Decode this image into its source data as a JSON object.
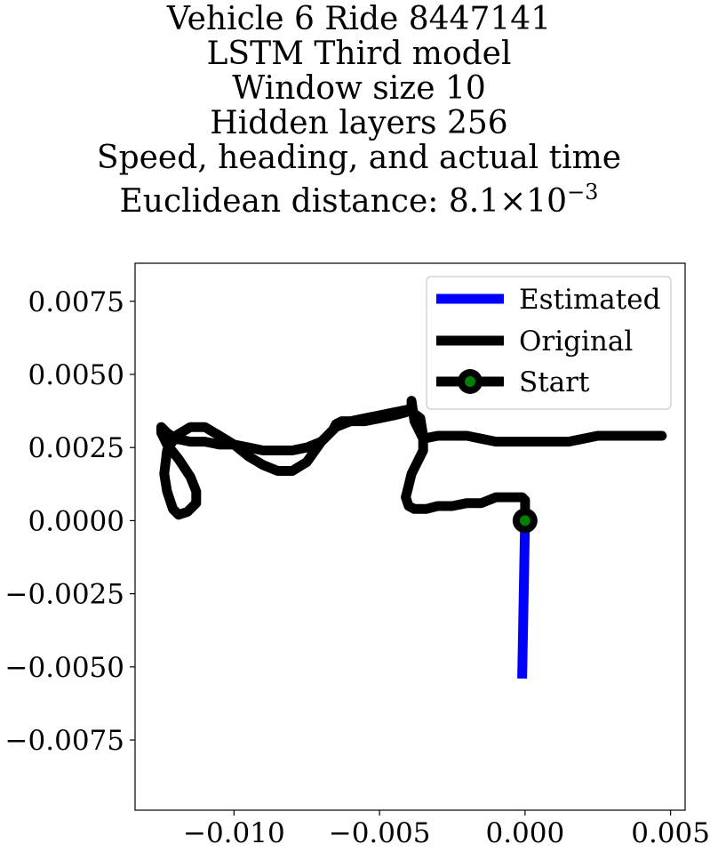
{
  "title_lines": [
    "Vehicle 6 Ride 8447141",
    "LSTM Third model",
    "Window size 10",
    "Hidden layers 256",
    "Speed, heading, and actual time"
  ],
  "distance_line": {
    "prefix": "Euclidean distance: 8.1",
    "times": "×",
    "base": "10",
    "exponent": "−3"
  },
  "chart_data": {
    "type": "line",
    "xlim": [
      -0.0134,
      0.0055
    ],
    "ylim": [
      -0.0099,
      0.0088
    ],
    "x_ticks": [
      -0.01,
      -0.005,
      0.0,
      0.005
    ],
    "x_tick_labels": [
      "−0.010",
      "−0.005",
      "0.000",
      "0.005"
    ],
    "y_ticks": [
      0.0075,
      0.005,
      0.0025,
      0.0,
      -0.0025,
      -0.005,
      -0.0075
    ],
    "y_tick_labels": [
      "0.0075",
      "0.0050",
      "0.0025",
      "0.0000",
      "−0.0025",
      "−0.0050",
      "−0.0075"
    ],
    "grid": false,
    "legend_position": "top-right",
    "series": [
      {
        "name": "Estimated",
        "color": "#0000ff",
        "x": [
          0.0,
          -0.0001
        ],
        "y": [
          0.0,
          -0.0054
        ]
      },
      {
        "name": "Original",
        "color": "#000000",
        "x": [
          0.0,
          0.0,
          -0.0001,
          -0.0005,
          -0.001,
          -0.0015,
          -0.002,
          -0.0025,
          -0.003,
          -0.0034,
          -0.0038,
          -0.004,
          -0.0041,
          -0.004,
          -0.0039,
          -0.0037,
          -0.0035,
          -0.0035,
          -0.0036,
          -0.004,
          -0.0045,
          -0.005,
          -0.0055,
          -0.006,
          -0.0065,
          -0.007,
          -0.0075,
          -0.008,
          -0.0085,
          -0.009,
          -0.0095,
          -0.01,
          -0.0105,
          -0.011,
          -0.0115,
          -0.012,
          -0.0123,
          -0.0124,
          -0.0123,
          -0.0121,
          -0.0119,
          -0.0116,
          -0.0113,
          -0.0113,
          -0.0115,
          -0.0119,
          -0.0123,
          -0.0125,
          -0.0125,
          -0.0123,
          -0.012,
          -0.0115,
          -0.011,
          -0.0105,
          -0.01,
          -0.0095,
          -0.009,
          -0.0085,
          -0.008,
          -0.0075,
          -0.007,
          -0.0066,
          -0.0065,
          -0.0063,
          -0.006,
          -0.0055,
          -0.005,
          -0.0045,
          -0.0041,
          -0.0039,
          -0.0039,
          -0.0038,
          -0.0035,
          -0.003,
          -0.0025,
          -0.002,
          -0.0015,
          -0.001,
          -0.0005,
          0.0,
          0.0005,
          0.001,
          0.0015,
          0.002,
          0.0025,
          0.003,
          0.0035,
          0.004,
          0.0045,
          0.0047
        ],
        "y": [
          0.0,
          0.0007,
          0.0008,
          0.0008,
          0.0008,
          0.0006,
          0.0006,
          0.0005,
          0.0005,
          0.0004,
          0.0004,
          0.0005,
          0.0008,
          0.0012,
          0.0016,
          0.002,
          0.0024,
          0.0029,
          0.0035,
          0.0038,
          0.0037,
          0.0036,
          0.0035,
          0.0034,
          0.0032,
          0.0027,
          0.002,
          0.0017,
          0.0017,
          0.0019,
          0.0022,
          0.0026,
          0.0029,
          0.0032,
          0.0032,
          0.0029,
          0.0024,
          0.0016,
          0.001,
          0.0004,
          0.0002,
          0.0003,
          0.0006,
          0.001,
          0.0015,
          0.0021,
          0.0026,
          0.003,
          0.0032,
          0.003,
          0.0028,
          0.0027,
          0.0027,
          0.0026,
          0.0026,
          0.0025,
          0.0024,
          0.0024,
          0.0024,
          0.0025,
          0.0027,
          0.0031,
          0.0033,
          0.0034,
          0.0034,
          0.0034,
          0.0035,
          0.0036,
          0.0037,
          0.0039,
          0.0041,
          0.0034,
          0.0028,
          0.0029,
          0.0029,
          0.0029,
          0.0028,
          0.0027,
          0.0027,
          0.0027,
          0.0027,
          0.0027,
          0.0027,
          0.0028,
          0.0029,
          0.0029,
          0.0029,
          0.0029,
          0.0029,
          0.0029
        ]
      },
      {
        "name": "Start",
        "color": "#000000",
        "marker_color": "#008000",
        "x": [
          0.0
        ],
        "y": [
          0.0
        ]
      }
    ]
  }
}
